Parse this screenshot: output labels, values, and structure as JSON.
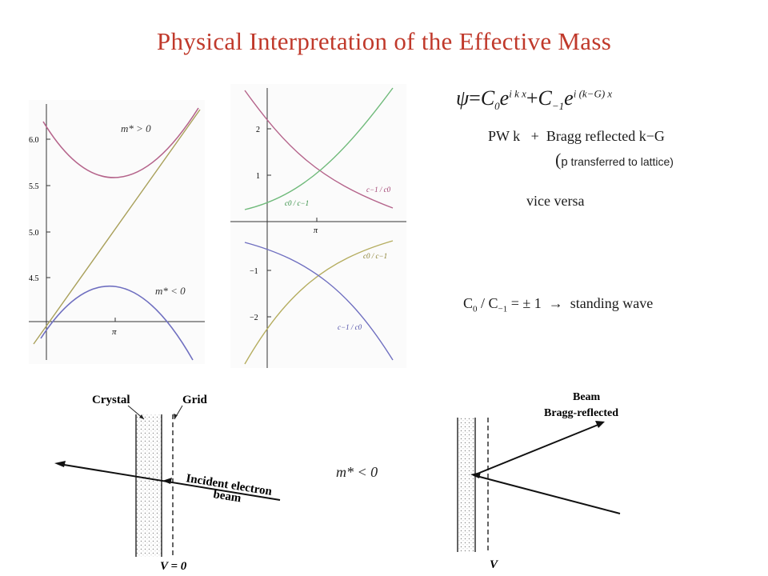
{
  "title": "Physical Interpretation of the Effective Mass",
  "colors": {
    "title": "#c0392b",
    "upper_band": "#b5648b",
    "lower_band": "#6f6fc0",
    "free_line": "#a9a05a",
    "green_curve": "#6fba7a",
    "olive_curve": "#b5ad5f"
  },
  "plot1": {
    "y_ticks": [
      "6.0",
      "5.5",
      "5.0",
      "4.5"
    ],
    "x_tick": "π",
    "label_upper": "m* > 0",
    "label_lower": "m* < 0"
  },
  "plot2": {
    "y_ticks": [
      "2",
      "1",
      "−1",
      "−2"
    ],
    "x_tick": "π",
    "label_c0_cm1_upper": "c0 / c−1",
    "label_cm1_c0_upper": "c−1 / c0",
    "label_c0_cm1_lower": "c0 / c−1",
    "label_cm1_c0_lower": "c−1 / c0"
  },
  "equation": {
    "psi": "ψ",
    "eq": "=",
    "c0": "C",
    "c0_sub": "0",
    "e1": "e",
    "exp1": "i k x",
    "plus": "+",
    "cm1": "C",
    "cm1_sub": "−1",
    "e2": "e",
    "exp2": "i (k−G) x"
  },
  "text": {
    "pw_line": "PW k   +  Bragg reflected k−G",
    "paren_open": "(",
    "p_letter": "p",
    "transferred": " transferred to lattice)",
    "vice_versa": "vice versa",
    "standing_c0": "C",
    "standing_c0_sub": "0",
    "standing_slash": " / C",
    "standing_cm1_sub": "−1",
    "standing_rest": " = ± 1  →  standing wave",
    "m_negative": "m* < 0"
  },
  "diagram_left": {
    "crystal": "Crystal",
    "grid": "Grid",
    "incident1": "Incident electron",
    "incident2": "beam",
    "v_label": "V = 0"
  },
  "diagram_right": {
    "beam1": "Beam",
    "beam2": "Bragg-reflected",
    "v_label": "V"
  }
}
